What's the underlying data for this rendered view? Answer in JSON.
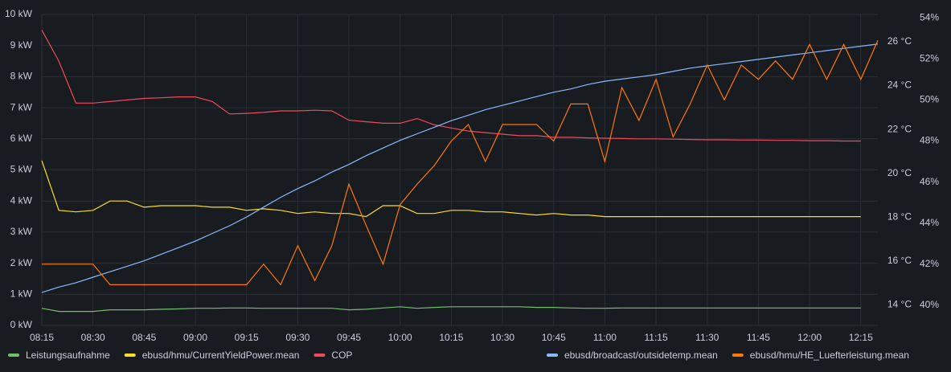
{
  "chart_data": {
    "type": "line",
    "x": [
      "08:15",
      "08:20",
      "08:25",
      "08:30",
      "08:35",
      "08:40",
      "08:45",
      "08:50",
      "08:55",
      "09:00",
      "09:05",
      "09:10",
      "09:15",
      "09:20",
      "09:25",
      "09:30",
      "09:35",
      "09:40",
      "09:45",
      "09:50",
      "09:55",
      "10:00",
      "10:05",
      "10:10",
      "10:15",
      "10:20",
      "10:25",
      "10:30",
      "10:35",
      "10:40",
      "10:45",
      "10:50",
      "10:55",
      "11:00",
      "11:05",
      "11:10",
      "11:15",
      "11:20",
      "11:25",
      "11:30",
      "11:35",
      "11:40",
      "11:45",
      "11:50",
      "11:55",
      "12:00",
      "12:05",
      "12:10",
      "12:15",
      "12:20"
    ],
    "xlim": [
      "08:15",
      "12:20"
    ],
    "xticks": [
      "08:15",
      "08:30",
      "08:45",
      "09:00",
      "09:15",
      "09:30",
      "09:45",
      "10:00",
      "10:15",
      "10:30",
      "10:45",
      "11:00",
      "11:15",
      "11:30",
      "11:45",
      "12:00",
      "12:15"
    ],
    "ylim": [
      0,
      10
    ],
    "yticks": [
      {
        "value": 0,
        "label": "0 kW"
      },
      {
        "value": 1,
        "label": "1 kW"
      },
      {
        "value": 2,
        "label": "2 kW"
      },
      {
        "value": 3,
        "label": "3 kW"
      },
      {
        "value": 4,
        "label": "4 kW"
      },
      {
        "value": 5,
        "label": "5 kW"
      },
      {
        "value": 6,
        "label": "6 kW"
      },
      {
        "value": 7,
        "label": "7 kW"
      },
      {
        "value": 8,
        "label": "8 kW"
      },
      {
        "value": 9,
        "label": "9 kW"
      },
      {
        "value": 10,
        "label": "10 kW"
      }
    ],
    "y2lim": [
      13.05,
      27.25
    ],
    "y2ticks": [
      {
        "value": 14,
        "label": "14 °C"
      },
      {
        "value": 16,
        "label": "16 °C"
      },
      {
        "value": 18,
        "label": "18 °C"
      },
      {
        "value": 20,
        "label": "20 °C"
      },
      {
        "value": 22,
        "label": "22 °C"
      },
      {
        "value": 24,
        "label": "24 °C"
      },
      {
        "value": 26,
        "label": "26 °C"
      }
    ],
    "y3lim": [
      39.02,
      54.16
    ],
    "y3ticks": [
      {
        "value": 40,
        "label": "40%"
      },
      {
        "value": 42,
        "label": "42%"
      },
      {
        "value": 44,
        "label": "44%"
      },
      {
        "value": 46,
        "label": "46%"
      },
      {
        "value": 48,
        "label": "48%"
      },
      {
        "value": 50,
        "label": "50%"
      },
      {
        "value": 52,
        "label": "52%"
      },
      {
        "value": 54,
        "label": "54%"
      }
    ],
    "grid": true,
    "series": [
      {
        "name": "Leistungsaufnahme",
        "color": "#73bf69",
        "axis": "y",
        "values": [
          0.55,
          0.45,
          0.45,
          0.45,
          0.5,
          0.5,
          0.5,
          0.52,
          0.53,
          0.55,
          0.55,
          0.56,
          0.56,
          0.55,
          0.55,
          0.55,
          0.55,
          0.55,
          0.5,
          0.52,
          0.56,
          0.6,
          0.55,
          0.58,
          0.6,
          0.6,
          0.6,
          0.6,
          0.6,
          0.58,
          0.58,
          0.56,
          0.55,
          0.55,
          0.56,
          0.56,
          0.56,
          0.56,
          0.56,
          0.56,
          0.56,
          0.56,
          0.56,
          0.56,
          0.56,
          0.56,
          0.56,
          0.56,
          0.56,
          null
        ]
      },
      {
        "name": "ebusd/hmu/CurrentYieldPower.mean",
        "color": "#fade2a",
        "axis": "y",
        "values": [
          5.3,
          3.7,
          3.65,
          3.7,
          4.0,
          4.0,
          3.8,
          3.85,
          3.85,
          3.85,
          3.8,
          3.8,
          3.7,
          3.75,
          3.7,
          3.6,
          3.65,
          3.6,
          3.6,
          3.5,
          3.85,
          3.85,
          3.6,
          3.6,
          3.7,
          3.7,
          3.65,
          3.65,
          3.6,
          3.55,
          3.6,
          3.55,
          3.55,
          3.5,
          3.5,
          3.5,
          3.5,
          3.5,
          3.5,
          3.5,
          3.5,
          3.5,
          3.5,
          3.5,
          3.5,
          3.5,
          3.5,
          3.5,
          3.5,
          null
        ]
      },
      {
        "name": "COP",
        "color": "#f2495c",
        "axis": "y",
        "values": [
          9.5,
          8.5,
          7.15,
          7.15,
          7.2,
          7.25,
          7.3,
          7.32,
          7.35,
          7.35,
          7.2,
          6.8,
          6.82,
          6.85,
          6.9,
          6.9,
          6.92,
          6.9,
          6.6,
          6.55,
          6.5,
          6.5,
          6.65,
          6.45,
          6.35,
          6.25,
          6.2,
          6.15,
          6.1,
          6.1,
          6.05,
          6.05,
          6.03,
          6.02,
          6.01,
          6.0,
          6.0,
          5.99,
          5.98,
          5.97,
          5.97,
          5.96,
          5.96,
          5.95,
          5.95,
          5.94,
          5.94,
          5.93,
          5.93,
          null
        ]
      },
      {
        "name": "ebusd/broadcast/outsidetemp.mean",
        "color": "#8ab8ff",
        "axis": "y2",
        "values": [
          14.55,
          14.8,
          15.0,
          15.25,
          15.5,
          15.75,
          16.0,
          16.3,
          16.6,
          16.9,
          17.25,
          17.6,
          18.0,
          18.45,
          18.9,
          19.3,
          19.65,
          20.05,
          20.4,
          20.8,
          21.15,
          21.5,
          21.8,
          22.1,
          22.4,
          22.65,
          22.9,
          23.1,
          23.3,
          23.5,
          23.7,
          23.85,
          24.05,
          24.2,
          24.3,
          24.4,
          24.5,
          24.65,
          24.8,
          24.9,
          25.0,
          25.1,
          25.2,
          25.3,
          25.4,
          25.5,
          25.6,
          25.7,
          25.8,
          25.9
        ]
      },
      {
        "name": "ebusd/hmu/HE_Luefterleistung.mean",
        "color": "#ff780a",
        "axis": "y3",
        "values": [
          42.0,
          42.0,
          42.0,
          42.0,
          41.0,
          41.0,
          41.0,
          41.0,
          41.0,
          41.0,
          41.0,
          41.0,
          41.0,
          42.0,
          41.0,
          42.9,
          41.2,
          42.9,
          45.9,
          43.9,
          42.0,
          44.9,
          45.9,
          46.8,
          48.0,
          48.8,
          47.0,
          48.8,
          48.8,
          48.8,
          48.0,
          49.8,
          49.8,
          47.0,
          50.6,
          49.0,
          51.0,
          48.2,
          49.8,
          51.7,
          50.0,
          51.7,
          51.0,
          51.9,
          51.0,
          52.7,
          51.0,
          52.7,
          51.0,
          52.9
        ]
      }
    ]
  }
}
